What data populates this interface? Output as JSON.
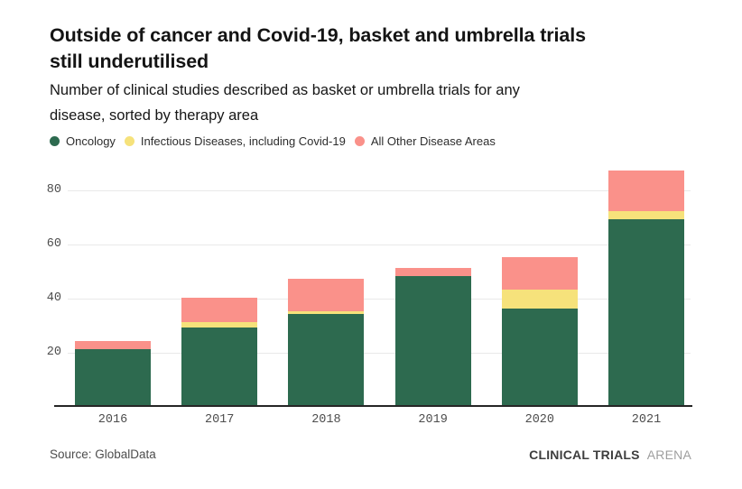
{
  "header": {
    "title_lines": [
      "Outside of cancer and Covid-19, basket and umbrella trials",
      "still underutilised"
    ],
    "subtitle_lines": [
      "Number of clinical studies described as basket or umbrella trials for any",
      "disease, sorted by therapy area"
    ]
  },
  "legend": {
    "items": [
      {
        "label": "Oncology",
        "color": "#2d6a4f"
      },
      {
        "label": "Infectious Diseases, including Covid-19",
        "color": "#f6e27b"
      },
      {
        "label": "All Other Disease Areas",
        "color": "#fa918a"
      }
    ]
  },
  "chart_data": {
    "type": "bar",
    "stacked": true,
    "categories": [
      "2016",
      "2017",
      "2018",
      "2019",
      "2020",
      "2021"
    ],
    "series": [
      {
        "name": "Oncology",
        "color": "#2d6a4f",
        "values": [
          21,
          29,
          34,
          48,
          36,
          69
        ]
      },
      {
        "name": "Infectious Diseases, including Covid-19",
        "color": "#f6e27b",
        "values": [
          0,
          2,
          1,
          0,
          7,
          3
        ]
      },
      {
        "name": "All Other Disease Areas",
        "color": "#fa918a",
        "values": [
          3,
          9,
          12,
          3,
          12,
          15
        ]
      }
    ],
    "totals": [
      24,
      40,
      47,
      51,
      55,
      87
    ],
    "title": "Outside of cancer and Covid-19, basket and umbrella trials still underutilised",
    "subtitle": "Number of clinical studies described as basket or umbrella trials for any disease, sorted by therapy area",
    "xlabel": "",
    "ylabel": "",
    "yticks": [
      20,
      40,
      60,
      80
    ],
    "ylim": [
      0,
      90
    ],
    "grid": "horizontal",
    "legend_position": "top-left",
    "colors": {
      "gridline": "#e9e9e9",
      "baseline": "#262626",
      "tick_text": "#4d4d4d"
    }
  },
  "footer": {
    "source": "Source: GlobalData",
    "logo_bold": "CLINICAL TRIALS",
    "logo_light": "ARENA"
  }
}
